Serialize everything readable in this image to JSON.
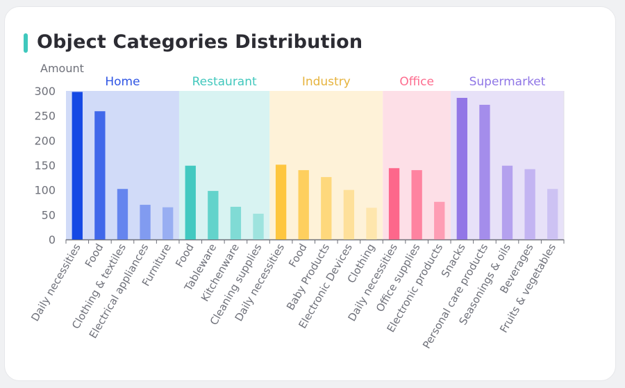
{
  "card": {
    "title": "Object Categories Distribution",
    "accent": "#3fc8bd"
  },
  "chart_data": {
    "type": "bar",
    "title": "Object Categories Distribution",
    "ylabel": "Amount",
    "ylim": [
      0,
      300
    ],
    "yticks": [
      0,
      50,
      100,
      150,
      200,
      250,
      300
    ],
    "grid": false,
    "groups": [
      {
        "name": "Home",
        "color": "#2f55e4",
        "band": "#d1dbf8",
        "categories": [
          "Daily necessities",
          "Food",
          "Clothing & textiles",
          "Electrical appliances",
          "Furniture"
        ],
        "values": [
          298,
          259,
          102,
          70,
          65
        ],
        "colors": [
          "#1549e4",
          "#4068ea",
          "#6585ee",
          "#819bf0",
          "#98aef2"
        ]
      },
      {
        "name": "Restaurant",
        "color": "#42c8bd",
        "band": "#d8f3f2",
        "categories": [
          "Food",
          "Tableware",
          "Kitchenware",
          "Cleaning supplies"
        ],
        "values": [
          149,
          98,
          66,
          52
        ],
        "colors": [
          "#42c9c0",
          "#63d3cb",
          "#80dbd5",
          "#9ee3de"
        ]
      },
      {
        "name": "Industry",
        "color": "#e6b33d",
        "band": "#fef2d8",
        "categories": [
          "Daily necessities",
          "Food",
          "Baby Products",
          "Electronic Devices",
          "Clothing"
        ],
        "values": [
          151,
          140,
          126,
          100,
          64
        ],
        "colors": [
          "#fec63f",
          "#fecf5e",
          "#fed87c",
          "#fee09a",
          "#fee6ad"
        ]
      },
      {
        "name": "Office",
        "color": "#fd6c8e",
        "band": "#fddfe7",
        "categories": [
          "Daily necessities",
          "Office supplies",
          "Electronic products"
        ],
        "values": [
          144,
          140,
          76
        ],
        "colors": [
          "#fd678b",
          "#fe83a0",
          "#fe9db4"
        ]
      },
      {
        "name": "Supermarket",
        "color": "#8f76e6",
        "band": "#e7e1f8",
        "categories": [
          "Snacks",
          "Personal care products",
          "Seasonings & oils",
          "Beverages",
          "Fruits & vegetables"
        ],
        "values": [
          286,
          272,
          149,
          142,
          102
        ],
        "colors": [
          "#9276e6",
          "#a48deb",
          "#b4a1ee",
          "#c3b4f2",
          "#cdc2f3"
        ]
      }
    ]
  }
}
